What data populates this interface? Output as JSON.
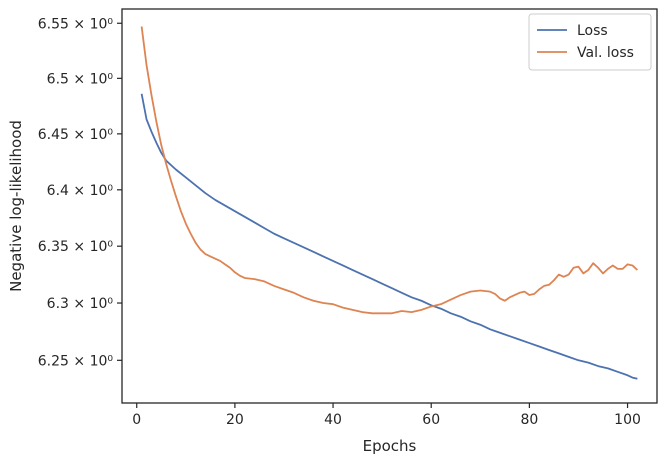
{
  "chart_data": {
    "type": "line",
    "xlabel": "Epochs",
    "ylabel": "Negative log-likelihood",
    "yscale": "log",
    "xlim": [
      -3,
      106
    ],
    "ylim": [
      6.213,
      6.563
    ],
    "x_ticks": [
      0,
      20,
      40,
      60,
      80,
      100
    ],
    "y_ticks": [
      {
        "value": 6.25,
        "label": "6.25 × 10⁰"
      },
      {
        "value": 6.3,
        "label": "6.3 × 10⁰"
      },
      {
        "value": 6.35,
        "label": "6.35 × 10⁰"
      },
      {
        "value": 6.4,
        "label": "6.4 × 10⁰"
      },
      {
        "value": 6.45,
        "label": "6.45 × 10⁰"
      },
      {
        "value": 6.5,
        "label": "6.5 × 10⁰"
      },
      {
        "value": 6.55,
        "label": "6.55 × 10⁰"
      }
    ],
    "legend_position": "top-right",
    "grid": false,
    "series": [
      {
        "name": "Loss",
        "color": "#4c72b0",
        "points": [
          [
            1,
            6.486
          ],
          [
            2,
            6.463
          ],
          [
            3,
            6.452
          ],
          [
            4,
            6.442
          ],
          [
            5,
            6.433
          ],
          [
            6,
            6.426
          ],
          [
            8,
            6.418
          ],
          [
            10,
            6.411
          ],
          [
            12,
            6.404
          ],
          [
            14,
            6.397
          ],
          [
            16,
            6.391
          ],
          [
            18,
            6.386
          ],
          [
            20,
            6.381
          ],
          [
            22,
            6.376
          ],
          [
            24,
            6.371
          ],
          [
            26,
            6.366
          ],
          [
            28,
            6.361
          ],
          [
            30,
            6.357
          ],
          [
            32,
            6.353
          ],
          [
            34,
            6.349
          ],
          [
            36,
            6.345
          ],
          [
            38,
            6.341
          ],
          [
            40,
            6.337
          ],
          [
            42,
            6.333
          ],
          [
            44,
            6.329
          ],
          [
            46,
            6.325
          ],
          [
            48,
            6.321
          ],
          [
            50,
            6.317
          ],
          [
            52,
            6.313
          ],
          [
            54,
            6.309
          ],
          [
            56,
            6.305
          ],
          [
            58,
            6.302
          ],
          [
            60,
            6.298
          ],
          [
            62,
            6.295
          ],
          [
            64,
            6.291
          ],
          [
            66,
            6.288
          ],
          [
            68,
            6.284
          ],
          [
            70,
            6.281
          ],
          [
            72,
            6.277
          ],
          [
            74,
            6.274
          ],
          [
            76,
            6.271
          ],
          [
            78,
            6.268
          ],
          [
            80,
            6.265
          ],
          [
            82,
            6.262
          ],
          [
            84,
            6.259
          ],
          [
            86,
            6.256
          ],
          [
            88,
            6.253
          ],
          [
            90,
            6.25
          ],
          [
            92,
            6.248
          ],
          [
            94,
            6.245
          ],
          [
            96,
            6.243
          ],
          [
            98,
            6.24
          ],
          [
            100,
            6.237
          ],
          [
            101,
            6.235
          ],
          [
            102,
            6.234
          ]
        ]
      },
      {
        "name": "Val. loss",
        "color": "#dd8452",
        "points": [
          [
            1,
            6.547
          ],
          [
            2,
            6.512
          ],
          [
            3,
            6.485
          ],
          [
            4,
            6.461
          ],
          [
            5,
            6.44
          ],
          [
            6,
            6.423
          ],
          [
            7,
            6.408
          ],
          [
            8,
            6.394
          ],
          [
            9,
            6.381
          ],
          [
            10,
            6.37
          ],
          [
            11,
            6.361
          ],
          [
            12,
            6.353
          ],
          [
            13,
            6.347
          ],
          [
            14,
            6.343
          ],
          [
            15,
            6.341
          ],
          [
            16,
            6.339
          ],
          [
            17,
            6.337
          ],
          [
            18,
            6.334
          ],
          [
            19,
            6.331
          ],
          [
            20,
            6.327
          ],
          [
            21,
            6.324
          ],
          [
            22,
            6.322
          ],
          [
            24,
            6.321
          ],
          [
            26,
            6.319
          ],
          [
            28,
            6.315
          ],
          [
            30,
            6.312
          ],
          [
            32,
            6.309
          ],
          [
            34,
            6.305
          ],
          [
            36,
            6.302
          ],
          [
            38,
            6.3
          ],
          [
            40,
            6.299
          ],
          [
            42,
            6.296
          ],
          [
            44,
            6.294
          ],
          [
            46,
            6.292
          ],
          [
            48,
            6.291
          ],
          [
            50,
            6.291
          ],
          [
            52,
            6.291
          ],
          [
            54,
            6.293
          ],
          [
            56,
            6.292
          ],
          [
            58,
            6.294
          ],
          [
            60,
            6.297
          ],
          [
            62,
            6.299
          ],
          [
            64,
            6.303
          ],
          [
            66,
            6.307
          ],
          [
            68,
            6.31
          ],
          [
            70,
            6.311
          ],
          [
            72,
            6.31
          ],
          [
            73,
            6.308
          ],
          [
            74,
            6.304
          ],
          [
            75,
            6.302
          ],
          [
            76,
            6.305
          ],
          [
            77,
            6.307
          ],
          [
            78,
            6.309
          ],
          [
            79,
            6.31
          ],
          [
            80,
            6.307
          ],
          [
            81,
            6.308
          ],
          [
            82,
            6.312
          ],
          [
            83,
            6.315
          ],
          [
            84,
            6.316
          ],
          [
            85,
            6.32
          ],
          [
            86,
            6.325
          ],
          [
            87,
            6.323
          ],
          [
            88,
            6.325
          ],
          [
            89,
            6.331
          ],
          [
            90,
            6.332
          ],
          [
            91,
            6.326
          ],
          [
            92,
            6.329
          ],
          [
            93,
            6.335
          ],
          [
            94,
            6.331
          ],
          [
            95,
            6.326
          ],
          [
            96,
            6.33
          ],
          [
            97,
            6.333
          ],
          [
            98,
            6.33
          ],
          [
            99,
            6.33
          ],
          [
            100,
            6.334
          ],
          [
            101,
            6.333
          ],
          [
            102,
            6.329
          ]
        ]
      }
    ]
  }
}
